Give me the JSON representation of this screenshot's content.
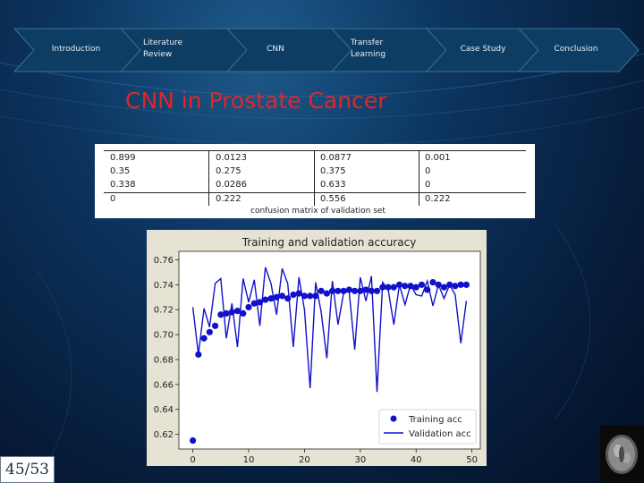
{
  "nav": {
    "items": [
      {
        "label": "Introduction"
      },
      {
        "label": "Literature\nReview"
      },
      {
        "label": "CNN"
      },
      {
        "label": "Transfer\nLearning"
      },
      {
        "label": "Case Study"
      },
      {
        "label": "Conclusion"
      }
    ]
  },
  "slide": {
    "title": "CNN in Prostate Cancer",
    "page": "45/53"
  },
  "confusion_matrix": {
    "rows": [
      [
        "0.899",
        "0.0123",
        "0.0877",
        "0.001"
      ],
      [
        "0.35",
        "0.275",
        "0.375",
        "0"
      ],
      [
        "0.338",
        "0.0286",
        "0.633",
        "0"
      ],
      [
        "0",
        "0.222",
        "0.556",
        "0.222"
      ]
    ],
    "caption": "confusion matrix of validation set"
  },
  "colors": {
    "accent_title": "#e0262b",
    "series": "#1111cc",
    "nav_arrow": "#0e3d63"
  },
  "chart_data": {
    "type": "line",
    "title": "Training and validation accuracy",
    "xlabel": "",
    "ylabel": "",
    "xlim": [
      -2.5,
      51.5
    ],
    "ylim": [
      0.6082,
      0.7668
    ],
    "xticks": [
      0,
      10,
      20,
      30,
      40,
      50
    ],
    "yticks": [
      0.62,
      0.64,
      0.66,
      0.68,
      0.7,
      0.72,
      0.74,
      0.76
    ],
    "ytick_labels": [
      "0.62",
      "0.64",
      "0.66",
      "0.68",
      "0.70",
      "0.72",
      "0.74",
      "0.76"
    ],
    "legend_position": "bottom-right",
    "grid": false,
    "series": [
      {
        "name": "Training acc",
        "style": "markers",
        "x": [
          0,
          1,
          2,
          3,
          4,
          5,
          6,
          7,
          8,
          9,
          10,
          11,
          12,
          13,
          14,
          15,
          16,
          17,
          18,
          19,
          20,
          21,
          22,
          23,
          24,
          25,
          26,
          27,
          28,
          29,
          30,
          31,
          32,
          33,
          34,
          35,
          36,
          37,
          38,
          39,
          40,
          41,
          42,
          43,
          44,
          45,
          46,
          47,
          48,
          49
        ],
        "y": [
          0.615,
          0.684,
          0.697,
          0.702,
          0.707,
          0.716,
          0.717,
          0.718,
          0.719,
          0.717,
          0.722,
          0.725,
          0.726,
          0.728,
          0.729,
          0.73,
          0.731,
          0.729,
          0.732,
          0.733,
          0.731,
          0.731,
          0.731,
          0.735,
          0.733,
          0.735,
          0.735,
          0.735,
          0.736,
          0.735,
          0.735,
          0.736,
          0.735,
          0.735,
          0.738,
          0.738,
          0.738,
          0.74,
          0.739,
          0.739,
          0.738,
          0.74,
          0.736,
          0.742,
          0.74,
          0.738,
          0.74,
          0.739,
          0.74,
          0.74
        ]
      },
      {
        "name": "Validation acc",
        "style": "line",
        "x": [
          0,
          1,
          2,
          3,
          4,
          5,
          6,
          7,
          8,
          9,
          10,
          11,
          12,
          13,
          14,
          15,
          16,
          17,
          18,
          19,
          20,
          21,
          22,
          23,
          24,
          25,
          26,
          27,
          28,
          29,
          30,
          31,
          32,
          33,
          34,
          35,
          36,
          37,
          38,
          39,
          40,
          41,
          42,
          43,
          44,
          45,
          46,
          47,
          48,
          49
        ],
        "y": [
          0.722,
          0.684,
          0.721,
          0.706,
          0.741,
          0.745,
          0.697,
          0.725,
          0.69,
          0.745,
          0.726,
          0.744,
          0.707,
          0.754,
          0.741,
          0.716,
          0.753,
          0.741,
          0.69,
          0.746,
          0.72,
          0.657,
          0.742,
          0.718,
          0.681,
          0.743,
          0.708,
          0.733,
          0.735,
          0.688,
          0.746,
          0.727,
          0.747,
          0.654,
          0.742,
          0.736,
          0.708,
          0.74,
          0.724,
          0.74,
          0.732,
          0.731,
          0.743,
          0.723,
          0.74,
          0.729,
          0.74,
          0.732,
          0.693,
          0.727
        ]
      }
    ]
  }
}
